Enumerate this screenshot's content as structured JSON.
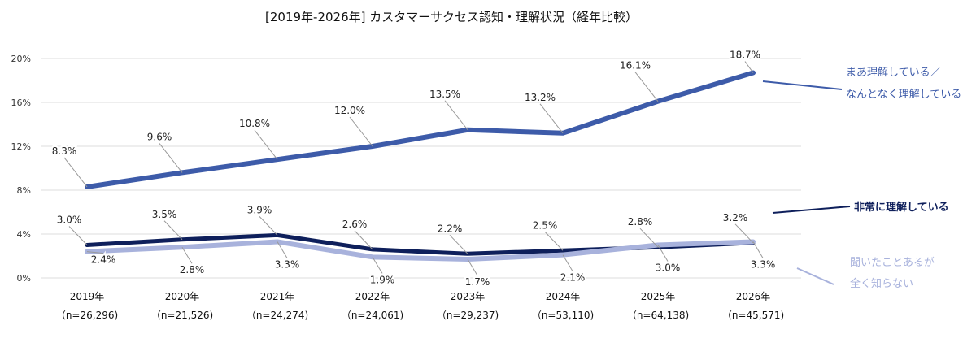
{
  "chart_data": {
    "type": "line",
    "title": "[2019年-2026年] カスタマーサクセス認知・理解状況（経年比較）",
    "categories": [
      "2019年",
      "2020年",
      "2021年",
      "2022年",
      "2023年",
      "2024年",
      "2025年",
      "2026年"
    ],
    "sample_sizes": [
      "（n=26,296)",
      "（n=21,526)",
      "（n=24,274)",
      "（n=24,061)",
      "（n=29,237)",
      "（n=53,110)",
      "（n=64,138)",
      "（n=45,571)"
    ],
    "y_ticks": [
      "0%",
      "4%",
      "8%",
      "12%",
      "16%",
      "20%"
    ],
    "ylim": [
      0,
      20
    ],
    "grid": true,
    "unit": "%",
    "series": [
      {
        "name": "まあ理解している／なんとなく理解している",
        "legend_lines": [
          "まあ理解している／",
          "なんとなく理解している"
        ],
        "color": "#3d5ba9",
        "values": [
          8.3,
          9.6,
          10.8,
          12.0,
          13.5,
          13.2,
          16.1,
          18.7
        ]
      },
      {
        "name": "非常に理解している",
        "legend_lines": [
          "非常に理解している"
        ],
        "color": "#0e1f5b",
        "values": [
          3.0,
          3.5,
          3.9,
          2.6,
          2.2,
          2.5,
          2.8,
          3.2
        ]
      },
      {
        "name": "聞いたことあるが全く知らない",
        "legend_lines": [
          "聞いたことあるが",
          "全く知らない"
        ],
        "color": "#a8b2dc",
        "values": [
          2.4,
          2.8,
          3.3,
          1.9,
          1.7,
          2.1,
          3.0,
          3.3
        ]
      }
    ]
  }
}
